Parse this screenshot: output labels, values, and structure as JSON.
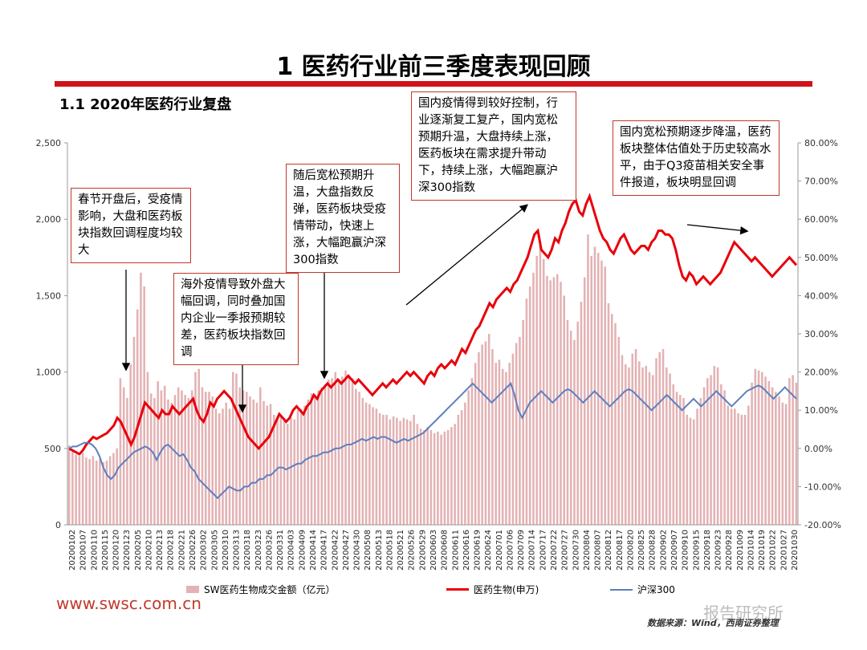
{
  "page": {
    "title": "1 医药行业前三季度表现回顾",
    "subtitle": "1.1 2020年医药行业复盘",
    "website": "www.swsc.com.cn",
    "source_note": "数据来源：Wind，西南证券整理",
    "watermark": "报告研究所"
  },
  "annotations": {
    "a1": "春节开盘后，受疫情影响，大盘和医药板块指数回调程度均较大",
    "a2": "海外疫情导致外盘大幅回调，同时叠加国内企业一季报预期较差，医药板块指数回调",
    "a3": "随后宽松预期升温，大盘指数反弹，医药板块受疫情带动，快速上涨，大幅跑赢沪深300指数",
    "a4": "国内疫情得到较好控制，行业逐渐复工复产，国内宽松预期升温，大盘持续上涨，医药板块在需求提升带动下，持续上涨，大幅跑赢沪深300指数",
    "a5": "国内宽松预期逐步降温，医药板块整体估值处于历史较高水平，由于Q3疫苗相关安全事件报道，板块明显回调"
  },
  "chart_data": {
    "type": "bar+line",
    "ylim_left": [
      0,
      2500
    ],
    "ylim_right": [
      -20,
      80
    ],
    "left_ticks": [
      "0",
      "500",
      "1,000",
      "1,500",
      "2,000",
      "2,500"
    ],
    "right_ticks": [
      "-20.00%",
      "-10.00%",
      "0.00%",
      "10.00%",
      "20.00%",
      "30.00%",
      "40.00%",
      "50.00%",
      "60.00%",
      "70.00%",
      "80.00%"
    ],
    "x_tick_labels": [
      "20200102",
      "20200107",
      "20200110",
      "20200115",
      "20200120",
      "20200123",
      "20200205",
      "20200210",
      "20200213",
      "20200218",
      "20200221",
      "20200226",
      "20200302",
      "20200305",
      "20200310",
      "20200313",
      "20200318",
      "20200323",
      "20200326",
      "20200331",
      "20200403",
      "20200409",
      "20200414",
      "20200417",
      "20200422",
      "20200427",
      "20200430",
      "20200508",
      "20200513",
      "20200518",
      "20200521",
      "20200526",
      "20200529",
      "20200603",
      "20200608",
      "20200611",
      "20200616",
      "20200619",
      "20200624",
      "20200701",
      "20200706",
      "20200709",
      "20200714",
      "20200717",
      "20200722",
      "20200727",
      "20200730",
      "20200804",
      "20200807",
      "20200812",
      "20200817",
      "20200820",
      "20200825",
      "20200828",
      "20200902",
      "20200907",
      "20200910",
      "20200915",
      "20200918",
      "20200923",
      "20200928",
      "20201009",
      "20201014",
      "20201019",
      "20201022",
      "20201027",
      "20201030"
    ],
    "legend": [
      "SW医药生物成交金额（亿元）",
      "医药生物(申万)",
      "沪深300"
    ],
    "series_turnover_bn": [
      520,
      480,
      460,
      450,
      470,
      440,
      430,
      450,
      420,
      430,
      410,
      420,
      450,
      470,
      500,
      960,
      900,
      830,
      1050,
      1230,
      1410,
      1650,
      1560,
      1000,
      860,
      830,
      940,
      880,
      910,
      820,
      800,
      850,
      900,
      880,
      850,
      830,
      880,
      1000,
      1020,
      900,
      870,
      870,
      840,
      760,
      730,
      760,
      800,
      760,
      1000,
      990,
      900,
      880,
      870,
      840,
      820,
      800,
      900,
      810,
      780,
      790,
      720,
      700,
      720,
      680,
      660,
      700,
      690,
      750,
      760,
      780,
      820,
      860,
      850,
      880,
      900,
      920,
      950,
      960,
      1000,
      950,
      970,
      1010,
      980,
      960,
      890,
      870,
      830,
      800,
      790,
      770,
      760,
      730,
      720,
      720,
      690,
      710,
      700,
      680,
      700,
      690,
      680,
      720,
      660,
      630,
      620,
      640,
      620,
      600,
      610,
      590,
      610,
      620,
      640,
      660,
      720,
      750,
      800,
      880,
      960,
      1060,
      1130,
      1180,
      1200,
      1250,
      1150,
      1060,
      1080,
      1020,
      1000,
      1060,
      1120,
      1190,
      1230,
      1340,
      1480,
      1560,
      1650,
      1760,
      1840,
      1740,
      1630,
      1600,
      1620,
      1640,
      1590,
      1500,
      1340,
      1270,
      1210,
      1330,
      1460,
      1620,
      1900,
      1760,
      1820,
      1780,
      1730,
      1690,
      1450,
      1380,
      1320,
      1230,
      1110,
      1050,
      1030,
      1120,
      1150,
      1070,
      1030,
      1040,
      1000,
      980,
      1090,
      1130,
      1150,
      1030,
      990,
      920,
      870,
      850,
      830,
      720,
      700,
      690,
      760,
      830,
      900,
      960,
      980,
      1040,
      1030,
      920,
      880,
      780,
      760,
      760,
      730,
      720,
      720,
      780,
      930,
      1020,
      1010,
      1000,
      970,
      940,
      900,
      870,
      840,
      800,
      790,
      960,
      980,
      930
    ],
    "series_sw_pharma_pct": [
      0,
      -0.5,
      -1,
      -1.5,
      -0.5,
      1,
      2,
      3,
      2.5,
      3,
      3.5,
      4,
      5,
      6,
      8,
      7,
      5,
      3,
      1,
      3,
      6,
      9,
      12,
      11,
      10,
      9,
      8,
      10,
      9,
      9,
      11,
      10,
      9,
      10,
      11,
      12,
      13,
      10,
      8,
      7,
      9,
      12,
      11,
      13,
      14,
      15,
      14,
      13,
      11,
      9,
      7,
      5,
      3,
      2,
      1,
      0,
      1,
      2,
      3,
      5,
      7,
      9,
      8,
      7,
      8,
      10,
      11,
      10,
      9,
      11,
      12,
      14,
      13,
      15,
      16,
      17,
      16,
      17,
      18,
      17,
      18,
      19,
      18,
      17,
      18,
      17,
      16,
      15,
      14,
      15,
      16,
      17,
      16,
      17,
      18,
      17,
      18,
      19,
      20,
      19,
      20,
      19,
      18,
      17,
      19,
      20,
      19,
      21,
      22,
      21,
      22,
      23,
      22,
      24,
      26,
      25,
      27,
      29,
      31,
      32,
      34,
      36,
      38,
      37,
      39,
      40,
      41,
      42,
      41,
      43,
      44,
      46,
      48,
      50,
      53,
      56,
      57,
      52,
      51,
      50,
      52,
      55,
      54,
      57,
      59,
      62,
      64,
      65,
      62,
      61,
      64,
      66,
      63,
      60,
      57,
      55,
      54,
      52,
      51,
      53,
      55,
      56,
      54,
      52,
      51,
      52,
      53,
      53,
      52,
      54,
      55,
      57,
      57,
      56,
      56,
      55,
      52,
      48,
      45,
      44,
      46,
      45,
      43,
      44,
      45,
      44,
      43,
      44,
      45,
      46,
      48,
      50,
      52,
      54,
      53,
      52,
      51,
      50,
      49,
      50,
      49,
      48,
      47,
      46,
      45,
      46,
      47,
      48,
      49,
      50,
      49,
      48
    ],
    "series_hs300_pct": [
      0,
      0.5,
      0.5,
      1,
      1.5,
      1.5,
      1,
      0,
      -2,
      -5,
      -7,
      -8,
      -7,
      -5,
      -4,
      -3,
      -2,
      -1,
      -0.5,
      0,
      0.5,
      0,
      -1,
      -3,
      -1,
      0.5,
      1,
      0,
      -1,
      -2,
      -1.5,
      -3,
      -5,
      -6,
      -8,
      -9,
      -10,
      -11,
      -12,
      -13,
      -12,
      -11,
      -10,
      -10.5,
      -11,
      -11,
      -10,
      -10,
      -9,
      -9,
      -8,
      -8,
      -7,
      -7,
      -6,
      -5,
      -5,
      -5.5,
      -5,
      -4.5,
      -4,
      -4,
      -3,
      -2.5,
      -2,
      -2,
      -1.5,
      -1,
      -1,
      -0.5,
      0,
      0,
      0.5,
      1,
      1,
      1.5,
      2,
      2.5,
      2,
      2.5,
      3,
      2.5,
      3,
      3,
      2.5,
      2,
      1.5,
      2,
      2.5,
      2,
      2.5,
      3,
      3.5,
      4,
      5,
      6,
      7,
      8,
      9,
      10,
      11,
      12,
      13,
      14,
      15,
      16,
      17,
      16,
      15,
      14,
      13,
      12,
      13,
      14,
      15,
      16,
      17,
      14,
      10,
      8,
      10,
      12,
      13,
      14,
      15,
      14,
      13,
      12,
      13,
      14,
      15,
      15.5,
      15,
      14,
      13,
      12,
      13,
      14,
      15,
      14,
      13,
      12,
      11,
      12,
      13,
      14,
      15,
      15.5,
      15,
      14,
      13,
      12,
      11,
      10,
      11,
      12,
      13,
      14,
      13,
      12,
      11,
      10,
      11,
      12,
      13,
      12,
      11,
      12,
      13,
      14,
      15,
      14,
      13,
      12,
      11,
      12,
      13,
      14,
      15,
      15.5,
      16,
      16.5,
      16,
      15,
      14,
      13,
      14,
      15,
      16,
      15,
      14,
      13
    ]
  }
}
